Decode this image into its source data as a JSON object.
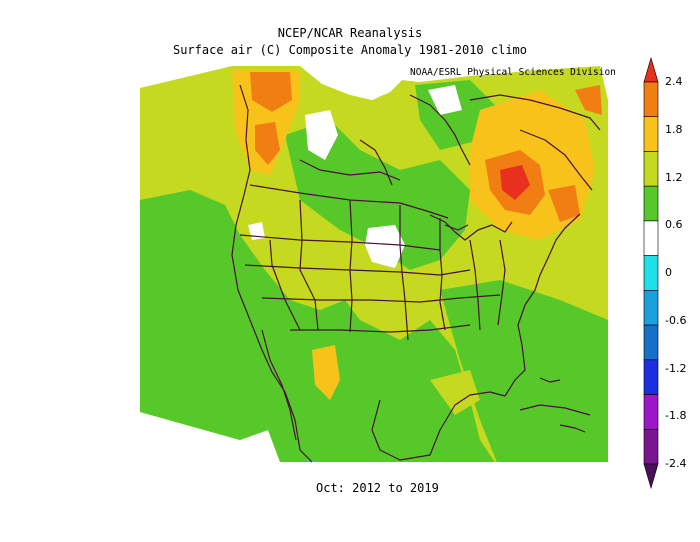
{
  "title_line1": "NCEP/NCAR Reanalysis",
  "title_line2": "Surface air (C) Composite Anomaly 1981-2010 climo",
  "credit": "NOAA/ESRL Physical Sciences Division",
  "period": "Oct: 2012 to 2019",
  "colorbar": {
    "labels": [
      "2.4",
      "1.8",
      "1.2",
      "0.6",
      "0",
      "-0.6",
      "-1.2",
      "-1.8",
      "-2.4"
    ],
    "colors": [
      "#e8301e",
      "#f07e12",
      "#f7c31b",
      "#c4d91f",
      "#56c82a",
      "#ffffff",
      "#1fe0e8",
      "#1aa0dc",
      "#1770c8",
      "#1c2fe0",
      "#9b17c7",
      "#7a1490",
      "#4a0f5a"
    ]
  },
  "map_colors": {
    "dark_red": "#e8301e",
    "orange": "#f07e12",
    "yellow": "#f7c31b",
    "yellow_green": "#c4d91f",
    "green": "#56c82a",
    "white": "#ffffff",
    "border": "#4a0f3a"
  }
}
